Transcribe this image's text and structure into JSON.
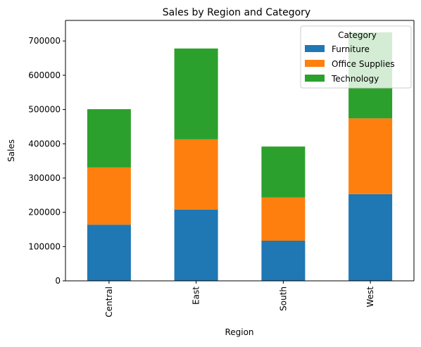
{
  "chart_data": {
    "type": "bar",
    "stacked": true,
    "title": "Sales by Region and Category",
    "xlabel": "Region",
    "ylabel": "Sales",
    "categories": [
      "Central",
      "East",
      "South",
      "West"
    ],
    "series": [
      {
        "name": "Furniture",
        "color": "#1f77b4",
        "values": [
          164000,
          208000,
          117000,
          253000
        ]
      },
      {
        "name": "Office Supplies",
        "color": "#ff7f0e",
        "values": [
          167000,
          205000,
          126000,
          221000
        ]
      },
      {
        "name": "Technology",
        "color": "#2ca02c",
        "values": [
          170000,
          265000,
          149000,
          251000
        ]
      }
    ],
    "ylim": [
      0,
      760000
    ],
    "yticks": [
      0,
      100000,
      200000,
      300000,
      400000,
      500000,
      600000,
      700000
    ],
    "legend": {
      "title": "Category",
      "placement": "top-right"
    },
    "grid": false
  }
}
